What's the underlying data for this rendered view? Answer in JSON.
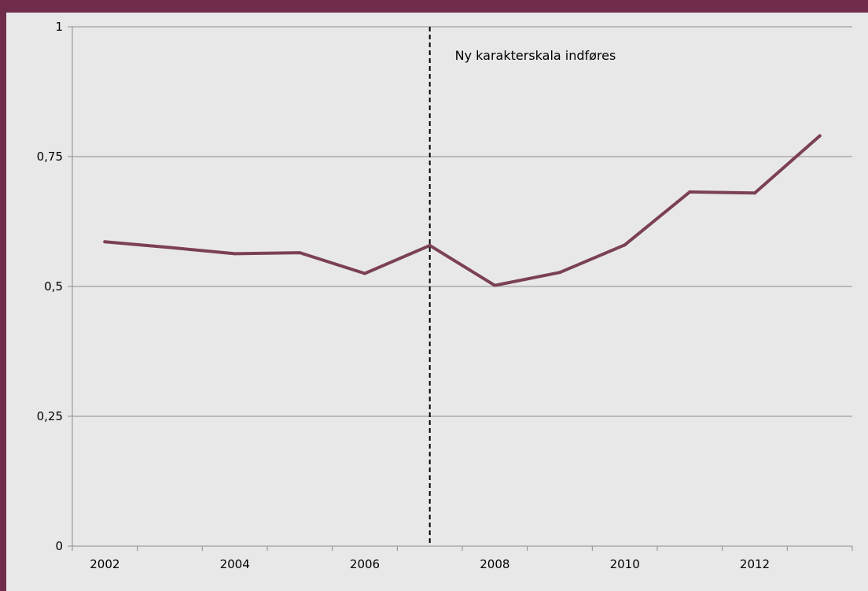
{
  "chart_data": {
    "type": "line",
    "title": "",
    "xlabel": "",
    "ylabel": "",
    "x": [
      2002,
      2003,
      2004,
      2005,
      2006,
      2007,
      2008,
      2009,
      2010,
      2011,
      2012,
      2013
    ],
    "series": [
      {
        "values": [
          0.586,
          0.575,
          0.563,
          0.565,
          0.525,
          0.579,
          0.502,
          0.527,
          0.58,
          0.682,
          0.68,
          0.79
        ]
      }
    ],
    "xlim": [
      2001.5,
      2013.5
    ],
    "ylim": [
      0,
      1
    ],
    "x_tick_labels": [
      "2002",
      "2004",
      "2006",
      "2008",
      "2010",
      "2012"
    ],
    "x_tick_values": [
      2002,
      2004,
      2006,
      2008,
      2010,
      2012
    ],
    "y_tick_labels": [
      "0",
      "0,25",
      "0,5",
      "0,75",
      "1"
    ],
    "y_tick_values": [
      0,
      0.25,
      0.5,
      0.75,
      1
    ],
    "grid": true,
    "annotation": {
      "text": "Ny karakterskala indføres",
      "x": 2007
    },
    "colors": {
      "line": "#7b4056",
      "grid": "#8c8c8c",
      "frame": "#702d4b",
      "plot_background": "#e8e8e8",
      "marker_line": "#000000"
    }
  }
}
